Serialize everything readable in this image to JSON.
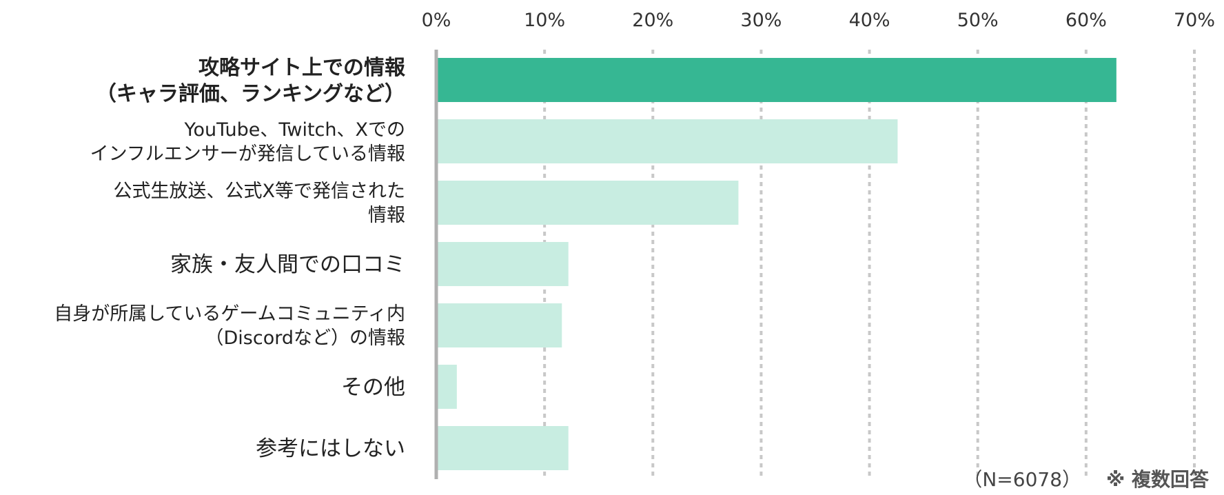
{
  "chart_data": {
    "type": "bar",
    "orientation": "horizontal",
    "categories": [
      [
        "攻略サイト上での情報",
        "（キャラ評価、ランキングなど）"
      ],
      [
        "YouTube、Twitch、Xでの",
        "インフルエンサーが発信している情報"
      ],
      [
        "公式生放送、公式X等で発信された",
        "情報"
      ],
      [
        "家族・友人間での口コミ"
      ],
      [
        "自身が所属しているゲームコミュニティ内",
        "（Discordなど）の情報"
      ],
      [
        "その他"
      ],
      [
        "参考にはしない"
      ]
    ],
    "values": [
      62.8,
      42.6,
      27.9,
      12.2,
      11.6,
      1.9,
      12.2
    ],
    "highlight_index": 0,
    "xlim": [
      0,
      70
    ],
    "xticks": [
      "0%",
      "10%",
      "20%",
      "30%",
      "40%",
      "50%",
      "60%",
      "70%"
    ],
    "tick_step": 10,
    "grid": true,
    "axis_position": "top",
    "colors": {
      "highlight_bar": "#36b793",
      "bar": "#c8ede1",
      "highlight_label": "#f0a01e",
      "label": "#222222",
      "grid": "#c8c8c8",
      "axis": "#b0b0b0"
    }
  },
  "footnote": {
    "n": "（N=6078）",
    "multi": "※ 複数回答"
  }
}
